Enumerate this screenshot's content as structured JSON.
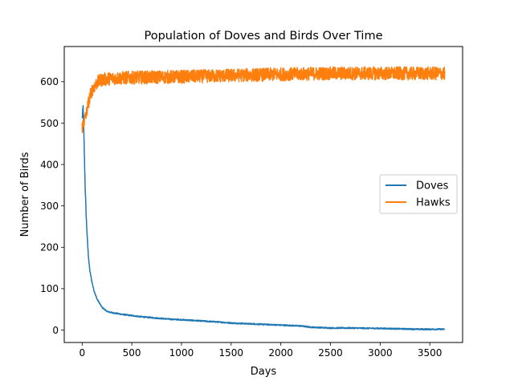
{
  "chart_data": {
    "type": "line",
    "title": "Population of Doves and Birds Over Time",
    "xlabel": "Days",
    "ylabel": "Number of Birds",
    "xlim": [
      -180,
      3830
    ],
    "ylim": [
      -30,
      685
    ],
    "xticks": [
      0,
      500,
      1000,
      1500,
      2000,
      2500,
      3000,
      3500
    ],
    "yticks": [
      0,
      100,
      200,
      300,
      400,
      500,
      600
    ],
    "grid": false,
    "legend_position": "center-right",
    "series": [
      {
        "name": "Doves",
        "color": "#1f77b4",
        "noise": 6,
        "x": [
          0,
          10,
          20,
          30,
          40,
          50,
          60,
          70,
          80,
          100,
          120,
          150,
          200,
          250,
          300,
          400,
          500,
          600,
          700,
          800,
          900,
          1000,
          1200,
          1400,
          1500,
          1600,
          1800,
          2000,
          2200,
          2300,
          2400,
          2500,
          2700,
          3000,
          3200,
          3400,
          3650
        ],
        "y": [
          510,
          540,
          450,
          350,
          280,
          230,
          190,
          160,
          140,
          115,
          95,
          75,
          55,
          45,
          42,
          38,
          35,
          32,
          30,
          28,
          26,
          25,
          22,
          19,
          17,
          16,
          14,
          12,
          10,
          7,
          6,
          5,
          5,
          4,
          3,
          2,
          2
        ]
      },
      {
        "name": "Hawks",
        "color": "#ff7f0e",
        "noise": 10,
        "x": [
          0,
          20,
          40,
          60,
          80,
          100,
          150,
          200,
          300,
          500,
          1000,
          1500,
          2000,
          2500,
          3000,
          3500,
          3650
        ],
        "y": [
          490,
          505,
          520,
          545,
          565,
          580,
          598,
          605,
          608,
          610,
          612,
          615,
          618,
          620,
          620,
          620,
          620
        ]
      }
    ]
  }
}
